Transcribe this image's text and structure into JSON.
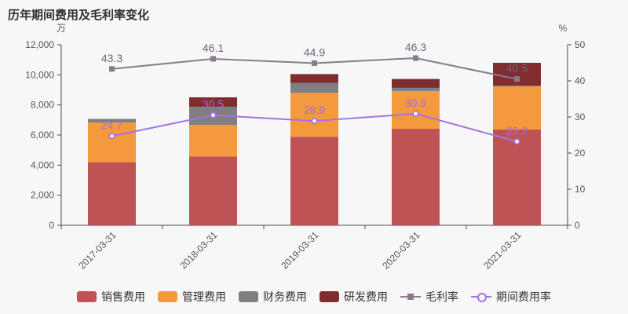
{
  "title": "历年期间费用及毛利率变化",
  "chart_data": {
    "type": "bar+line",
    "categories": [
      "2017-03-31",
      "2018-03-31",
      "2019-03-31",
      "2020-03-31",
      "2021-03-31"
    ],
    "bar_series": [
      {
        "name": "销售费用",
        "color": "#bf5254",
        "values": [
          4190,
          4575,
          5880,
          6420,
          6365
        ]
      },
      {
        "name": "管理费用",
        "color": "#f5993f",
        "values": [
          2645,
          2090,
          2920,
          2505,
          2870
        ]
      },
      {
        "name": "财务费用",
        "color": "#7f7f7f",
        "values": [
          235,
          1215,
          655,
          210,
          50
        ]
      },
      {
        "name": "研发费用",
        "color": "#802d2f",
        "values": [
          0,
          625,
          595,
          590,
          1515
        ]
      }
    ],
    "line_series": [
      {
        "name": "毛利率",
        "color": "#8a7a8c",
        "marker": "square",
        "label_color": "#6f6577",
        "values": [
          43.3,
          46.1,
          44.9,
          46.3,
          40.5
        ]
      },
      {
        "name": "期间费用率",
        "color": "#a472e4",
        "marker": "circle-open",
        "label_color": "#9f6be2",
        "values": [
          24.7,
          30.5,
          28.9,
          30.9,
          23.2
        ]
      }
    ],
    "left_axis": {
      "unit": "万",
      "min": 0,
      "max": 12000,
      "step": 2000,
      "labels": [
        "0",
        "2,000",
        "4,000",
        "6,000",
        "8,000",
        "10,000",
        "12,000"
      ]
    },
    "right_axis": {
      "unit": "%",
      "min": 0,
      "max": 50,
      "step": 10,
      "labels": [
        "0",
        "10",
        "20",
        "30",
        "40",
        "50"
      ]
    },
    "legend": [
      "销售费用",
      "管理费用",
      "财务费用",
      "研发费用",
      "毛利率",
      "期间费用率"
    ],
    "axis_color": "#4a4a4a",
    "tick_label_color": "#555555"
  }
}
